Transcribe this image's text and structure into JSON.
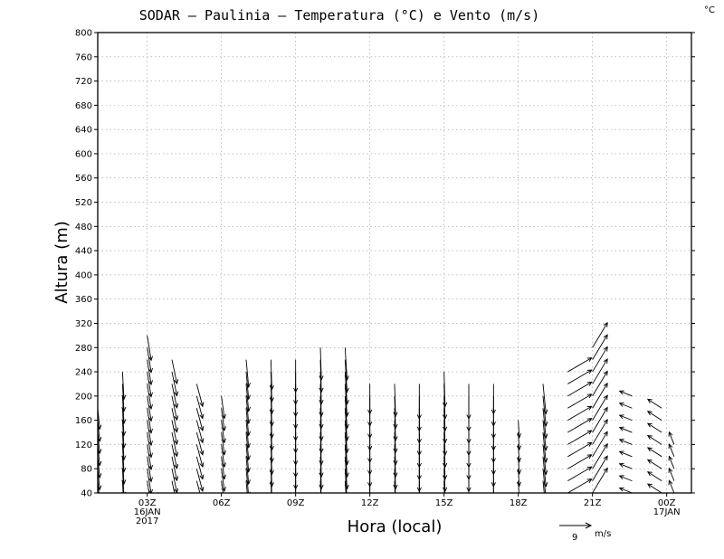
{
  "chart_data": {
    "type": "vector",
    "title": "SODAR  –  Paulinia  –  Temperatura (°C) e Vento (m/s)",
    "unit_corner": "°C",
    "xlabel": "Hora (local)",
    "ylabel": "Altura (m)",
    "ylim": [
      40,
      800
    ],
    "yticks": [
      40,
      80,
      120,
      160,
      200,
      240,
      280,
      320,
      360,
      400,
      440,
      480,
      520,
      560,
      600,
      640,
      680,
      720,
      760,
      800
    ],
    "xlim": [
      1,
      25
    ],
    "xticks": [
      {
        "x": 3,
        "line1": "03Z",
        "line2": "16JAN",
        "line3": "2017"
      },
      {
        "x": 6,
        "line1": "06Z",
        "line2": "",
        "line3": ""
      },
      {
        "x": 9,
        "line1": "09Z",
        "line2": "",
        "line3": ""
      },
      {
        "x": 12,
        "line1": "12Z",
        "line2": "",
        "line3": ""
      },
      {
        "x": 15,
        "line1": "15Z",
        "line2": "",
        "line3": ""
      },
      {
        "x": 18,
        "line1": "18Z",
        "line2": "",
        "line3": ""
      },
      {
        "x": 21,
        "line1": "21Z",
        "line2": "",
        "line3": ""
      },
      {
        "x": 24,
        "line1": "00Z",
        "line2": "17JAN",
        "line3": ""
      }
    ],
    "grid": true,
    "reference_vector": {
      "speed": 9,
      "label_value": "9",
      "label_unit": "m/s"
    },
    "profiles": [
      {
        "x": 1,
        "top": 190,
        "u": 0.4,
        "v": -4.2
      },
      {
        "x": 2,
        "top": 240,
        "u": 0.3,
        "v": -5.5
      },
      {
        "x": 3,
        "top": 300,
        "u": 0.8,
        "v": -5.0
      },
      {
        "x": 4,
        "top": 260,
        "u": 1.0,
        "v": -4.8
      },
      {
        "x": 5,
        "top": 220,
        "u": 1.2,
        "v": -4.5
      },
      {
        "x": 6,
        "top": 210,
        "u": 0.6,
        "v": -4.5
      },
      {
        "x": 7,
        "top": 260,
        "u": 0.5,
        "v": -5.5
      },
      {
        "x": 8,
        "top": 260,
        "u": 0.2,
        "v": -6.0
      },
      {
        "x": 9,
        "top": 260,
        "u": 0.0,
        "v": -6.5
      },
      {
        "x": 10,
        "top": 280,
        "u": 0.2,
        "v": -6.5
      },
      {
        "x": 11,
        "top": 280,
        "u": 0.4,
        "v": -6.5
      },
      {
        "x": 12,
        "top": 220,
        "u": 0.0,
        "v": -6.0
      },
      {
        "x": 13,
        "top": 220,
        "u": 0.2,
        "v": -6.5
      },
      {
        "x": 14,
        "top": 220,
        "u": 0.0,
        "v": -7.0
      },
      {
        "x": 15,
        "top": 240,
        "u": 0.2,
        "v": -7.0
      },
      {
        "x": 16,
        "top": 220,
        "u": 0.0,
        "v": -7.0
      },
      {
        "x": 17,
        "top": 220,
        "u": 0.0,
        "v": -6.0
      },
      {
        "x": 18,
        "top": 160,
        "u": 0.2,
        "v": -3.5
      },
      {
        "x": 19,
        "top": 220,
        "u": 0.6,
        "v": -6.0
      },
      {
        "x": 20,
        "top": 240,
        "u": 4.8,
        "v": 2.8
      },
      {
        "x": 21,
        "top": 280,
        "u": 3.0,
        "v": 5.0
      },
      {
        "x": 22.6,
        "top": 200,
        "u": -2.5,
        "v": 1.0
      },
      {
        "x": 23.8,
        "top": 180,
        "u": -2.8,
        "v": 1.8
      },
      {
        "x": 24.3,
        "top": 120,
        "u": -1.0,
        "v": 2.5
      }
    ]
  }
}
